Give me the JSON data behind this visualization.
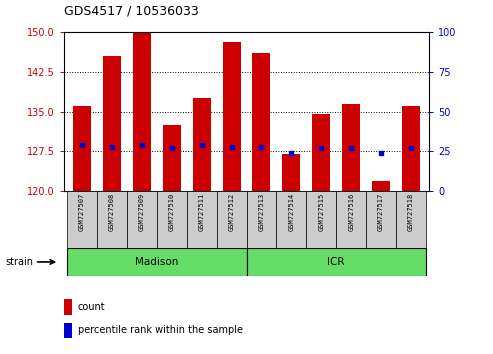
{
  "title": "GDS4517 / 10536033",
  "samples": [
    "GSM727507",
    "GSM727508",
    "GSM727509",
    "GSM727510",
    "GSM727511",
    "GSM727512",
    "GSM727513",
    "GSM727514",
    "GSM727515",
    "GSM727516",
    "GSM727517",
    "GSM727518"
  ],
  "count_values": [
    136.0,
    145.5,
    150.0,
    132.5,
    137.5,
    148.0,
    146.0,
    127.0,
    134.5,
    136.5,
    122.0,
    136.0
  ],
  "percentile_values": [
    29,
    28,
    29,
    27,
    29,
    28,
    28,
    24,
    27,
    27,
    24,
    27
  ],
  "group_ranges": [
    [
      0,
      6,
      "Madison"
    ],
    [
      6,
      12,
      "ICR"
    ]
  ],
  "ylim_left": [
    120,
    150
  ],
  "ylim_right": [
    0,
    100
  ],
  "yticks_left": [
    120,
    127.5,
    135,
    142.5,
    150
  ],
  "yticks_right": [
    0,
    25,
    50,
    75,
    100
  ],
  "bar_color": "#cc0000",
  "dot_color": "#0000cc",
  "bar_width": 0.6,
  "group_row_color": "#66dd66",
  "label_color_left": "#cc0000",
  "label_color_right": "#0000cc",
  "legend_count_label": "count",
  "legend_percentile_label": "percentile rank within the sample",
  "strain_label": "strain"
}
